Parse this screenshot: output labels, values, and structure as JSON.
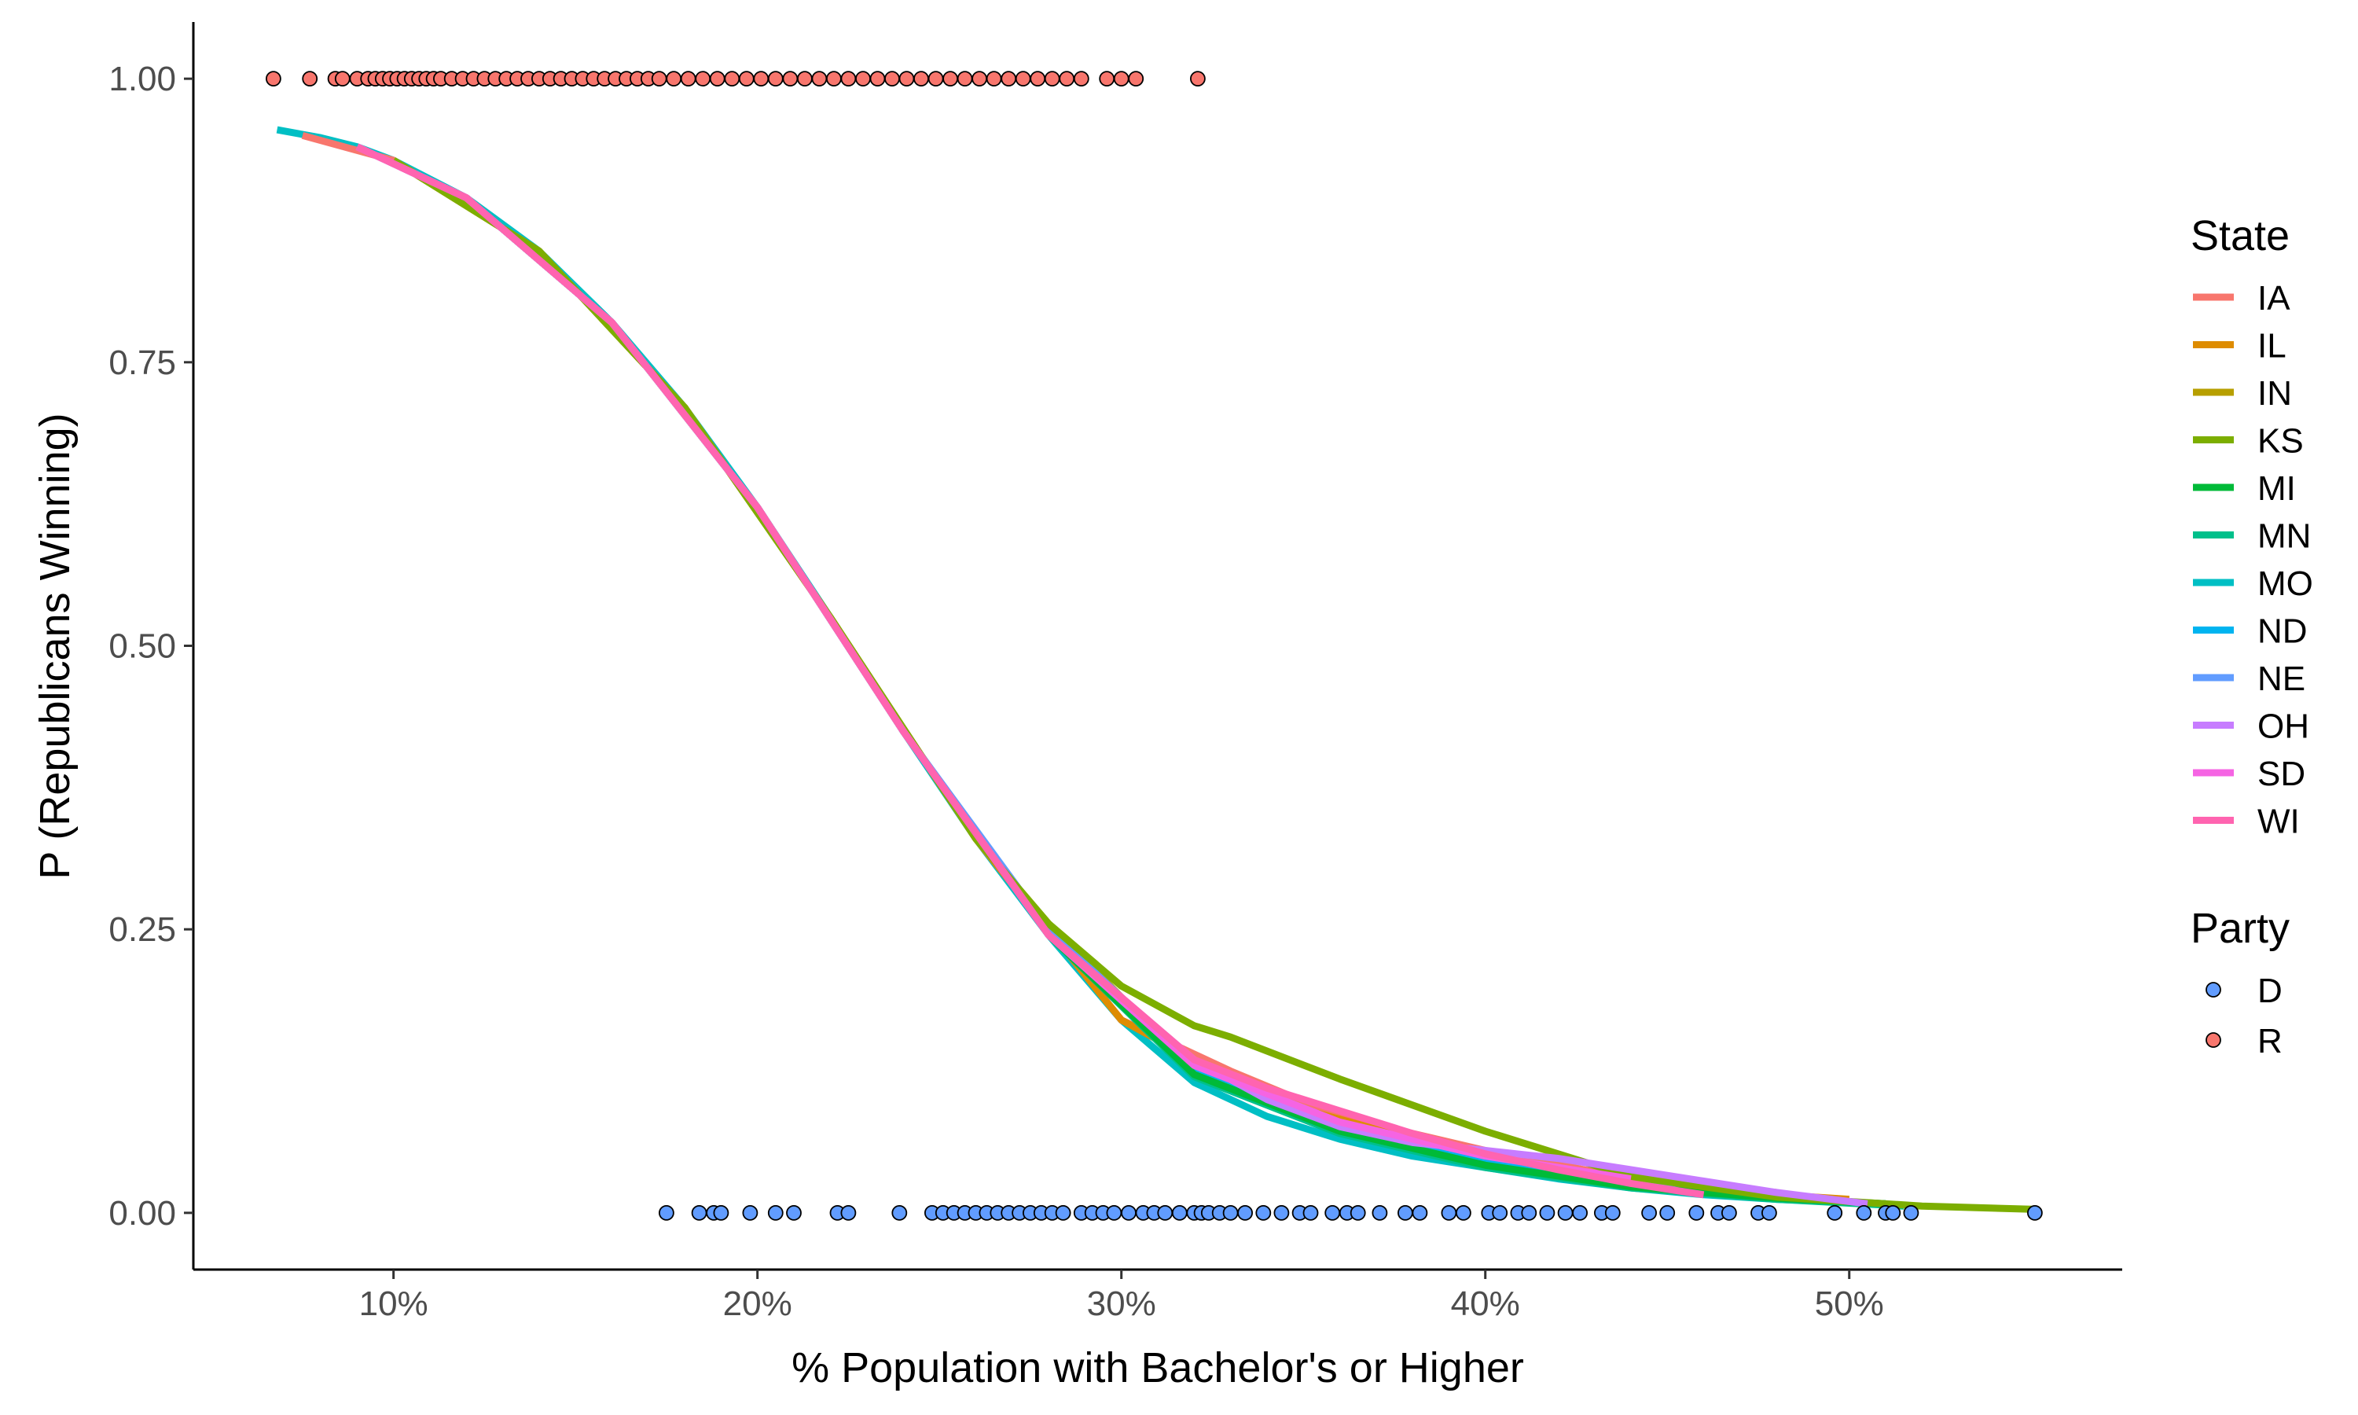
{
  "chart_data": {
    "type": "scatter",
    "xlabel": "% Population with Bachelor's or Higher",
    "ylabel": "P (Republicans Winning)",
    "xlim": [
      4.5,
      57.5
    ],
    "ylim": [
      -0.05,
      1.05
    ],
    "x_ticks": [
      {
        "value": 10,
        "label": "10%"
      },
      {
        "value": 20,
        "label": "20%"
      },
      {
        "value": 30,
        "label": "30%"
      },
      {
        "value": 40,
        "label": "40%"
      },
      {
        "value": 50,
        "label": "50%"
      }
    ],
    "y_ticks": [
      {
        "value": 0.0,
        "label": "0.00"
      },
      {
        "value": 0.25,
        "label": "0.25"
      },
      {
        "value": 0.5,
        "label": "0.50"
      },
      {
        "value": 0.75,
        "label": "0.75"
      },
      {
        "value": 1.0,
        "label": "1.00"
      }
    ],
    "grid": false,
    "legend_position": "right",
    "legends": [
      {
        "title": "State",
        "kind": "line",
        "entries": [
          {
            "label": "IA",
            "color": "#F8766D"
          },
          {
            "label": "IL",
            "color": "#DE8C00"
          },
          {
            "label": "IN",
            "color": "#B79F00"
          },
          {
            "label": "KS",
            "color": "#7CAE00"
          },
          {
            "label": "MI",
            "color": "#00BA38"
          },
          {
            "label": "MN",
            "color": "#00C08B"
          },
          {
            "label": "MO",
            "color": "#00BFC4"
          },
          {
            "label": "ND",
            "color": "#00B4F0"
          },
          {
            "label": "NE",
            "color": "#619CFF"
          },
          {
            "label": "OH",
            "color": "#C77CFF"
          },
          {
            "label": "SD",
            "color": "#F564E3"
          },
          {
            "label": "WI",
            "color": "#FF64B0"
          }
        ]
      },
      {
        "title": "Party",
        "kind": "point",
        "entries": [
          {
            "label": "D",
            "color": "#619CFF"
          },
          {
            "label": "R",
            "color": "#F8766D"
          }
        ]
      }
    ],
    "series": [
      {
        "name": "MO",
        "color": "#00BFC4",
        "x": [
          6.8,
          8.0,
          9.0,
          10,
          12,
          14,
          16,
          18,
          20,
          22,
          24,
          26,
          28,
          30,
          32,
          34,
          36,
          38,
          40,
          42,
          44,
          46,
          48,
          51
        ],
        "y": [
          0.955,
          0.948,
          0.94,
          0.928,
          0.895,
          0.848,
          0.785,
          0.71,
          0.622,
          0.525,
          0.425,
          0.33,
          0.245,
          0.17,
          0.115,
          0.085,
          0.065,
          0.05,
          0.04,
          0.03,
          0.022,
          0.016,
          0.012,
          0.008
        ]
      },
      {
        "name": "IA",
        "color": "#F8766D",
        "x": [
          7.5,
          10,
          14,
          18,
          22,
          26,
          30,
          33,
          36,
          40,
          44,
          48
        ],
        "y": [
          0.95,
          0.928,
          0.848,
          0.71,
          0.525,
          0.33,
          0.17,
          0.125,
          0.085,
          0.055,
          0.03,
          0.018
        ]
      },
      {
        "name": "IL",
        "color": "#DE8C00",
        "x": [
          10,
          14,
          18,
          22,
          26,
          30,
          34,
          38,
          42,
          46,
          50
        ],
        "y": [
          0.928,
          0.848,
          0.71,
          0.525,
          0.33,
          0.17,
          0.1,
          0.065,
          0.035,
          0.02,
          0.012
        ]
      },
      {
        "name": "IN",
        "color": "#B79F00",
        "x": [
          10,
          14,
          18,
          22,
          26,
          28,
          30,
          32,
          36,
          40,
          44,
          48
        ],
        "y": [
          0.928,
          0.848,
          0.71,
          0.525,
          0.33,
          0.255,
          0.19,
          0.13,
          0.08,
          0.048,
          0.028,
          0.016
        ]
      },
      {
        "name": "NE",
        "color": "#619CFF",
        "x": [
          9,
          12,
          16,
          20,
          24,
          28,
          32,
          36,
          40,
          44,
          47
        ],
        "y": [
          0.94,
          0.895,
          0.785,
          0.622,
          0.425,
          0.25,
          0.13,
          0.075,
          0.045,
          0.025,
          0.018
        ]
      },
      {
        "name": "MN",
        "color": "#00C08B",
        "x": [
          12,
          16,
          20,
          24,
          28,
          32,
          36,
          40,
          44,
          48,
          51.5
        ],
        "y": [
          0.895,
          0.785,
          0.622,
          0.425,
          0.245,
          0.12,
          0.07,
          0.04,
          0.022,
          0.012,
          0.006
        ]
      },
      {
        "name": "ND",
        "color": "#00B4F0",
        "x": [
          12,
          16,
          20,
          24,
          28,
          32,
          36,
          40,
          43
        ],
        "y": [
          0.895,
          0.785,
          0.622,
          0.425,
          0.245,
          0.125,
          0.075,
          0.045,
          0.032
        ]
      },
      {
        "name": "MI",
        "color": "#00BA38",
        "x": [
          12,
          16,
          20,
          24,
          28,
          32,
          36,
          40,
          44,
          48,
          51
        ],
        "y": [
          0.895,
          0.785,
          0.622,
          0.425,
          0.245,
          0.122,
          0.072,
          0.042,
          0.023,
          0.013,
          0.008
        ]
      },
      {
        "name": "KS",
        "color": "#7CAE00",
        "x": [
          10,
          14,
          18,
          22,
          26,
          28,
          30,
          32,
          33,
          36,
          40,
          44,
          48,
          52,
          55.2
        ],
        "y": [
          0.928,
          0.848,
          0.71,
          0.525,
          0.33,
          0.255,
          0.2,
          0.165,
          0.155,
          0.118,
          0.072,
          0.032,
          0.014,
          0.006,
          0.003
        ]
      },
      {
        "name": "OH",
        "color": "#C77CFF",
        "x": [
          9,
          12,
          16,
          20,
          24,
          28,
          32,
          34,
          36,
          38,
          40,
          42,
          44,
          46,
          48,
          50.5
        ],
        "y": [
          0.94,
          0.895,
          0.785,
          0.622,
          0.425,
          0.245,
          0.135,
          0.1,
          0.076,
          0.062,
          0.055,
          0.048,
          0.038,
          0.028,
          0.018,
          0.008
        ]
      },
      {
        "name": "SD",
        "color": "#F564E3",
        "x": [
          9,
          12,
          16,
          20,
          24,
          28,
          32,
          36,
          40,
          44
        ],
        "y": [
          0.94,
          0.895,
          0.785,
          0.622,
          0.425,
          0.245,
          0.13,
          0.08,
          0.05,
          0.03
        ]
      },
      {
        "name": "WI",
        "color": "#FF64B0",
        "x": [
          9,
          12,
          16,
          20,
          24,
          28,
          32,
          34,
          36,
          38,
          40,
          42,
          44,
          46
        ],
        "y": [
          0.94,
          0.895,
          0.785,
          0.622,
          0.425,
          0.245,
          0.135,
          0.11,
          0.09,
          0.07,
          0.052,
          0.038,
          0.026,
          0.016
        ]
      }
    ],
    "points": [
      {
        "party": "R",
        "color": "#F8766D",
        "y": 1.0,
        "x": [
          6.7,
          7.7,
          8.4,
          8.6,
          9.0,
          9.3,
          9.5,
          9.7,
          9.9,
          10.1,
          10.3,
          10.5,
          10.7,
          10.9,
          11.1,
          11.3,
          11.6,
          11.9,
          12.2,
          12.5,
          12.8,
          13.1,
          13.4,
          13.7,
          14.0,
          14.3,
          14.6,
          14.9,
          15.2,
          15.5,
          15.8,
          16.1,
          16.4,
          16.7,
          17.0,
          17.3,
          17.7,
          18.1,
          18.5,
          18.9,
          19.3,
          19.7,
          20.1,
          20.5,
          20.9,
          21.3,
          21.7,
          22.1,
          22.5,
          22.9,
          23.3,
          23.7,
          24.1,
          24.5,
          24.9,
          25.3,
          25.7,
          26.1,
          26.5,
          26.9,
          27.3,
          27.7,
          28.1,
          28.5,
          28.9,
          29.6,
          30.0,
          30.4,
          32.1
        ]
      },
      {
        "party": "D",
        "color": "#619CFF",
        "y": 0.0,
        "x": [
          17.5,
          18.4,
          18.8,
          19.0,
          19.8,
          20.5,
          21.0,
          22.2,
          22.5,
          23.9,
          24.8,
          25.1,
          25.4,
          25.7,
          26.0,
          26.3,
          26.6,
          26.9,
          27.2,
          27.5,
          27.8,
          28.1,
          28.4,
          28.9,
          29.2,
          29.5,
          29.8,
          30.2,
          30.6,
          30.9,
          31.2,
          31.6,
          32.0,
          32.2,
          32.4,
          32.7,
          33.0,
          33.4,
          33.9,
          34.4,
          34.9,
          35.2,
          35.8,
          36.2,
          36.5,
          37.1,
          37.8,
          38.2,
          39.0,
          39.4,
          40.1,
          40.4,
          40.9,
          41.2,
          41.7,
          42.2,
          42.6,
          43.2,
          43.5,
          44.5,
          45.0,
          45.8,
          46.4,
          46.7,
          47.5,
          47.8,
          49.6,
          50.4,
          51.0,
          51.2,
          51.7,
          55.1
        ]
      }
    ]
  }
}
